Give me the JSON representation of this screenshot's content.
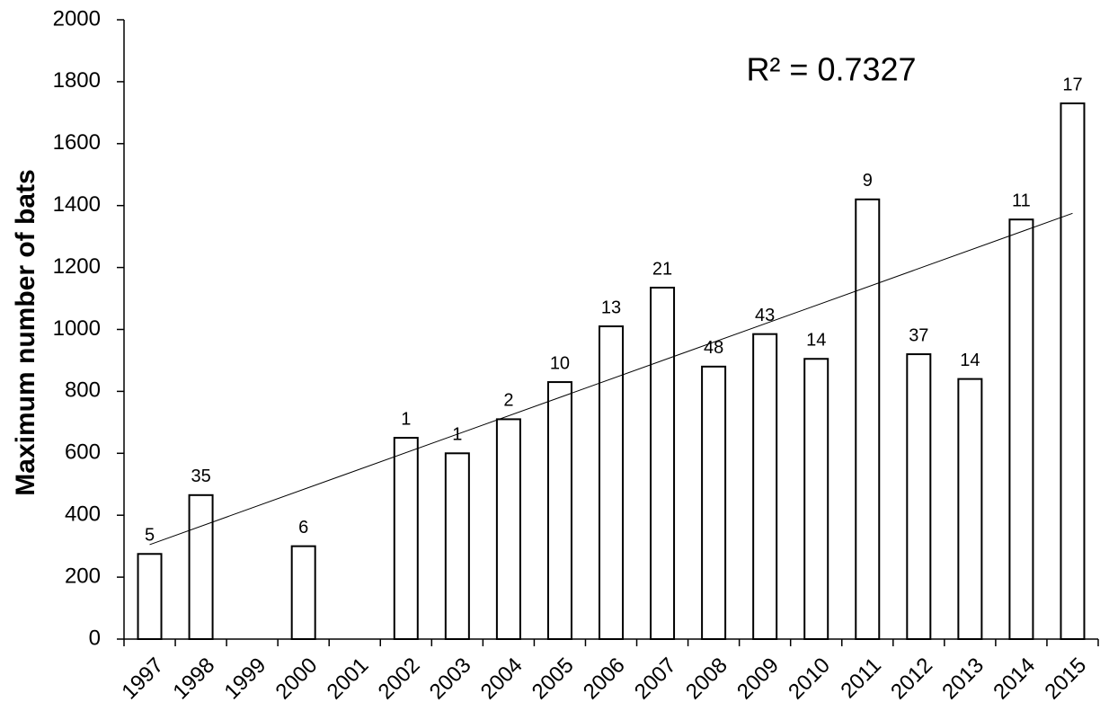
{
  "chart_data": {
    "type": "bar",
    "y_label": "Maximum number of bats",
    "annotation": "R² = 0.7327",
    "categories": [
      "1997",
      "1998",
      "1999",
      "2000",
      "2001",
      "2002",
      "2003",
      "2004",
      "2005",
      "2006",
      "2007",
      "2008",
      "2009",
      "2010",
      "2011",
      "2012",
      "2013",
      "2014",
      "2015"
    ],
    "values": [
      275,
      465,
      null,
      300,
      null,
      650,
      600,
      710,
      830,
      1010,
      1135,
      880,
      985,
      905,
      1420,
      920,
      840,
      1355,
      1730
    ],
    "bar_annotations": [
      5,
      35,
      null,
      6,
      null,
      1,
      1,
      2,
      10,
      13,
      21,
      48,
      43,
      14,
      9,
      37,
      14,
      11,
      17
    ],
    "trendline": {
      "start": 305,
      "end": 1375
    },
    "color": "#ffffff",
    "ylim": [
      0,
      2000
    ],
    "yticks": [
      0,
      200,
      400,
      600,
      800,
      1000,
      1200,
      1400,
      1600,
      1800,
      2000
    ]
  }
}
